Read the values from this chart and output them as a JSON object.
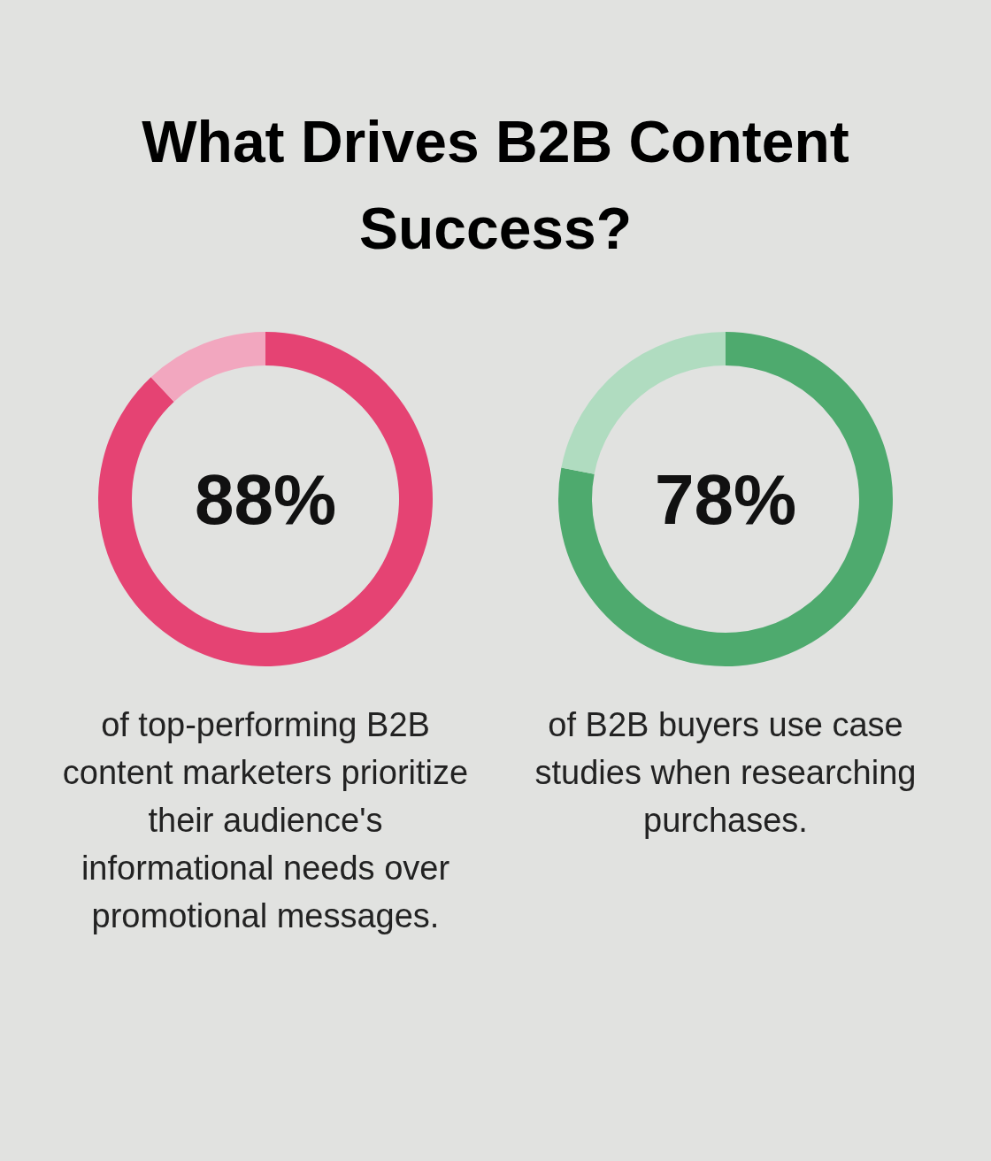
{
  "chart_data": [
    {
      "type": "donut",
      "title": "What Drives B2B Content Success?",
      "categories": [
        null,
        null
      ],
      "values": [
        88,
        12
      ],
      "colors": [
        "#e54373",
        "#f2a7bf"
      ],
      "value_labels": [
        "88%",
        null
      ],
      "annotations": [
        "of top-performing B2B content marketers prioritize their audience's informational needs over promotional messages."
      ]
    },
    {
      "type": "donut",
      "categories": [
        null,
        null
      ],
      "values": [
        78,
        22
      ],
      "colors": [
        "#4eaa6e",
        "#b0dcc0"
      ],
      "value_labels": [
        "78%",
        null
      ],
      "annotations": [
        "of B2B buyers use case studies when researching purchases."
      ]
    }
  ]
}
